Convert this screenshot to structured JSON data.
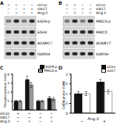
{
  "panels": {
    "A": {
      "label": "A",
      "conditions": [
        {
          "name": "siCon",
          "signs": [
            "+",
            "+",
            "−",
            "−"
          ]
        },
        {
          "name": "siA17",
          "signs": [
            "−",
            "−",
            "+",
            "+"
          ]
        },
        {
          "name": "Ang II",
          "signs": [
            "−",
            "+",
            "−",
            "+"
          ]
        }
      ],
      "bands": [
        "EGFR-p",
        "EGFR",
        "ADAM17",
        "GAPDH"
      ]
    },
    "B": {
      "label": "B",
      "conditions": [
        {
          "name": "siCon",
          "signs": [
            "+",
            "+",
            "−",
            "−"
          ]
        },
        {
          "name": "siA17",
          "signs": [
            "−",
            "−",
            "+",
            "+"
          ]
        },
        {
          "name": "Ang II",
          "signs": [
            "−",
            "+",
            "−",
            "+"
          ]
        }
      ],
      "bands": [
        "PRKCδ-p",
        "PRKCδ",
        "ADAM17",
        "GAPDH"
      ]
    }
  },
  "chart_data": [
    {
      "type": "bar",
      "title": "C",
      "ylabel": "Phosphorylation (fold)",
      "categories": [
        null,
        null,
        null,
        null
      ],
      "conditions": [
        {
          "name": "siCon",
          "signs": [
            "+",
            "+",
            "−",
            "−"
          ]
        },
        {
          "name": "siA17",
          "signs": [
            "−",
            "−",
            "+",
            "+"
          ]
        },
        {
          "name": "Ang II",
          "signs": [
            "−",
            "+",
            "−",
            "+"
          ]
        }
      ],
      "series": [
        {
          "name": "EGFR-p",
          "color": "#111111",
          "values": [
            1,
            3.4,
            1,
            1.3
          ],
          "errors": [
            0.1,
            0.4,
            0.1,
            0.2
          ]
        },
        {
          "name": "PRKCδ-p",
          "color": "#999999",
          "values": [
            1,
            2.8,
            1,
            1.2
          ],
          "errors": [
            0.1,
            0.3,
            0.1,
            0.2
          ]
        }
      ],
      "ylim": [
        0,
        4
      ],
      "yticks": [
        0,
        1,
        2,
        3,
        4
      ],
      "legend": "upper right"
    },
    {
      "type": "bar",
      "title": "D",
      "ylabel": "Cell number (fold)",
      "xlabel": "Ang II",
      "categories": [
        "−",
        "+"
      ],
      "series": [
        {
          "name": "siCon",
          "color": "#111111",
          "values": [
            1,
            1.6
          ],
          "errors": [
            0.1,
            0.15
          ]
        },
        {
          "name": "siA17",
          "color": "#ffffff",
          "values": [
            1,
            1.1
          ],
          "errors": [
            0.1,
            0.1
          ]
        }
      ],
      "ylim": [
        0,
        2
      ],
      "yticks": [
        0,
        0.5,
        1,
        1.5,
        2
      ],
      "legend": "upper right"
    }
  ]
}
